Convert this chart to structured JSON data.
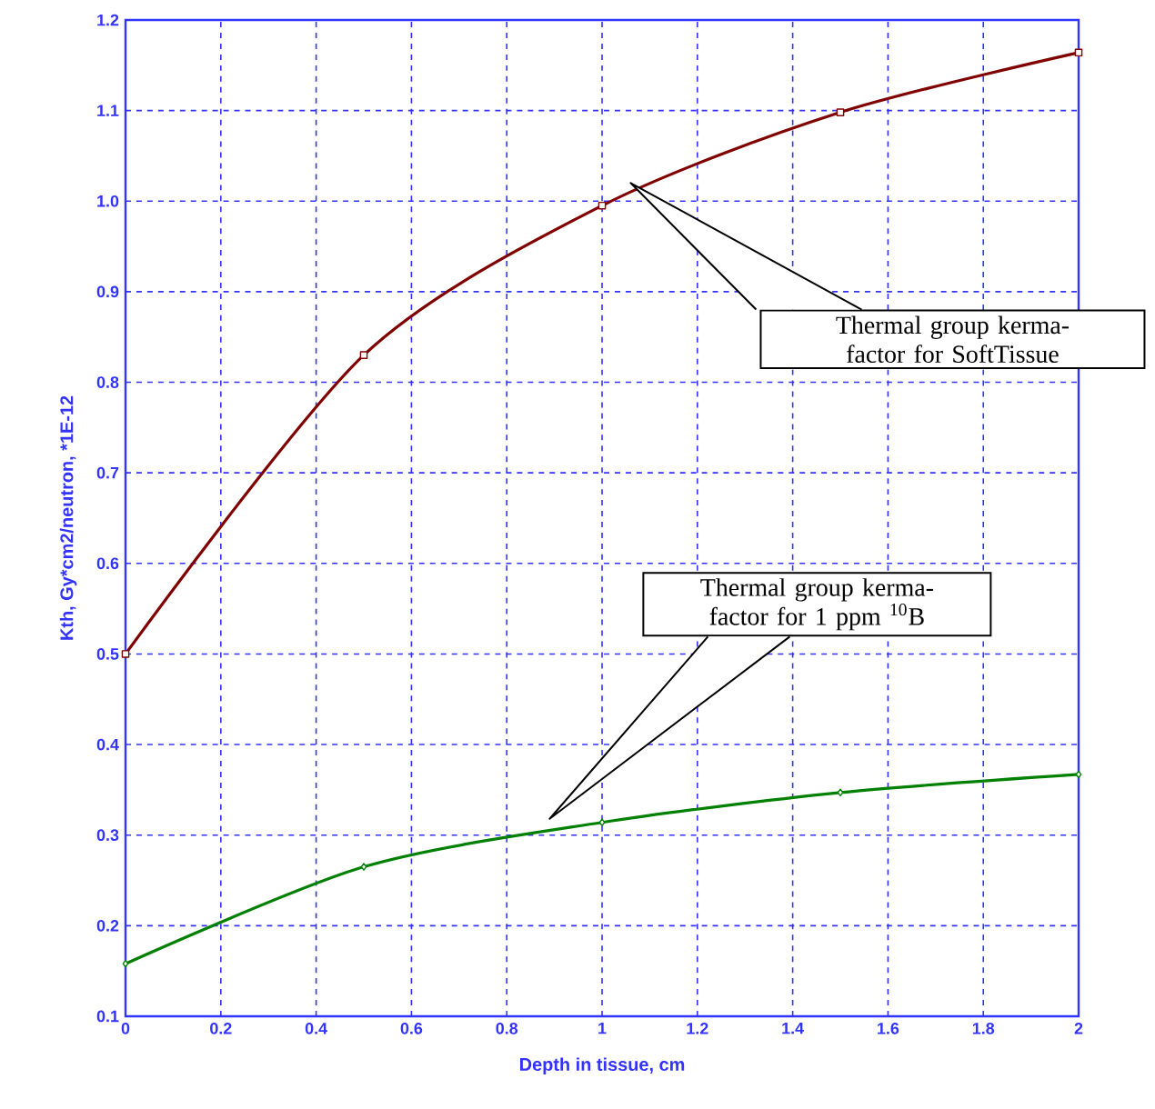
{
  "chart_data": {
    "type": "line",
    "xlabel": "Depth in tissue, cm",
    "ylabel": "Kth, Gy*cm2/neutron, *1E-12",
    "x": [
      0,
      0.5,
      1,
      1.5,
      2
    ],
    "series": [
      {
        "color": "#800000",
        "marker": "square",
        "values": [
          0.5,
          0.83,
          0.995,
          1.098,
          1.164
        ]
      },
      {
        "color": "#008000",
        "marker": "diamond",
        "values": [
          0.158,
          0.265,
          0.314,
          0.347,
          0.367
        ]
      }
    ],
    "xlim": [
      0,
      2
    ],
    "ylim": [
      0.1,
      1.2
    ],
    "xticks": [
      0,
      0.2,
      0.4,
      0.6,
      0.8,
      1,
      1.2,
      1.4,
      1.6,
      1.8,
      2
    ],
    "yticks": [
      0.1,
      0.2,
      0.3,
      0.4,
      0.5,
      0.6,
      0.7,
      0.8,
      0.9,
      {
        "value": 1,
        "label": "1.0"
      },
      1.1,
      1.2
    ],
    "grid": true,
    "line_style": "solid",
    "annotations": [
      "Thermal group kerma-factor for SoftTissue",
      "Thermal group kerma-factor for 1 ppm $^{10}$B"
    ]
  }
}
